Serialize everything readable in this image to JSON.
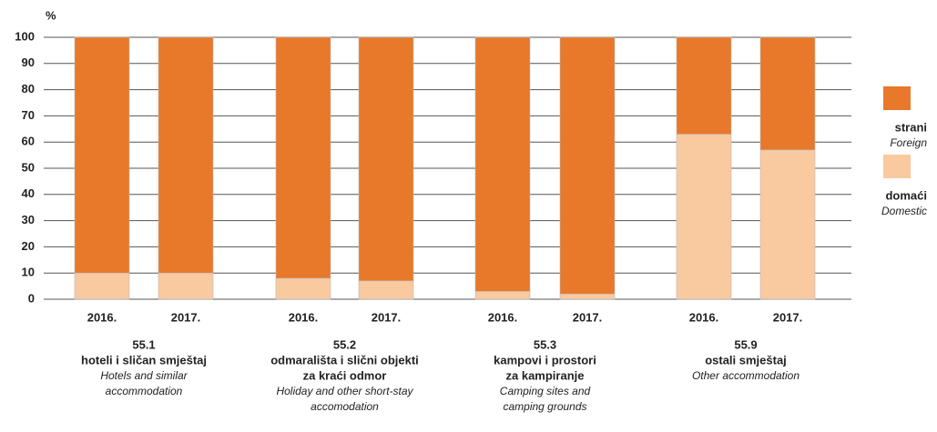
{
  "chart_data": {
    "type": "stacked_bar",
    "y_label": "%",
    "ylim": [
      0,
      100
    ],
    "yticks": [
      0,
      10,
      20,
      30,
      40,
      50,
      60,
      70,
      80,
      90,
      100
    ],
    "grid": true,
    "legend": "right",
    "categories": [
      "2016.",
      "2017.",
      "2016.",
      "2017.",
      "2016.",
      "2017.",
      "2016.",
      "2017."
    ],
    "groups": [
      {
        "code": "55.1",
        "name": [
          "hoteli i sličan smještaj"
        ],
        "name_en": [
          "Hotels and similar",
          "accommodation"
        ]
      },
      {
        "code": "55.2",
        "name": [
          "odmarališta i slični objekti",
          "za kraći odmor"
        ],
        "name_en": [
          "Holiday and other short-stay",
          "accomodation"
        ]
      },
      {
        "code": "55.3",
        "name": [
          "kampovi i prostori",
          "za kampiranje"
        ],
        "name_en": [
          "Camping sites and",
          "camping grounds"
        ]
      },
      {
        "code": "55.9",
        "name": [
          "ostali smještaj"
        ],
        "name_en": [
          "Other accommodation"
        ]
      }
    ],
    "series": [
      {
        "name": "strani",
        "name_en": "Foreign",
        "color": "#e8782a",
        "values": [
          90,
          90,
          92,
          93,
          97,
          98,
          37,
          43
        ]
      },
      {
        "name": "domaći",
        "name_en": "Domestic",
        "color": "#f9c9a0",
        "values": [
          10,
          10,
          8,
          7,
          3,
          2,
          63,
          57
        ]
      }
    ]
  }
}
